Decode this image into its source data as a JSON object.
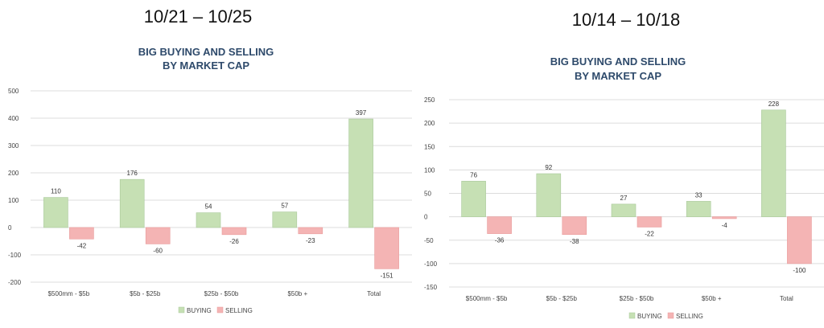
{
  "chart_data": [
    {
      "type": "bar",
      "date_range": "10/21 – 10/25",
      "title_line1": "BIG BUYING AND SELLING",
      "title_line2": "BY MARKET CAP",
      "categories": [
        "$500mm - $5b",
        "$5b - $25b",
        "$25b - $50b",
        "$50b +",
        "Total"
      ],
      "series": [
        {
          "name": "BUYING",
          "values": [
            110,
            176,
            54,
            57,
            397
          ],
          "color": "#c6e0b4"
        },
        {
          "name": "SELLING",
          "values": [
            -42,
            -60,
            -26,
            -23,
            -151
          ],
          "color": "#f4b4b4"
        }
      ],
      "ylim": [
        -200,
        500
      ],
      "yticks": [
        -200,
        -100,
        0,
        100,
        200,
        300,
        400,
        500
      ],
      "ytick_labels": [
        "-200",
        "-100",
        "0",
        "100",
        "200",
        "300",
        "400",
        "500"
      ],
      "grid": true,
      "legend": "bottom"
    },
    {
      "type": "bar",
      "date_range": "10/14 – 10/18",
      "title_line1": "BIG BUYING AND SELLING",
      "title_line2": "BY MARKET CAP",
      "categories": [
        "$500mm - $5b",
        "$5b - $25b",
        "$25b - $50b",
        "$50b +",
        "Total"
      ],
      "series": [
        {
          "name": "BUYING",
          "values": [
            76,
            92,
            27,
            33,
            228
          ],
          "color": "#c6e0b4"
        },
        {
          "name": "SELLING",
          "values": [
            -36,
            -38,
            -22,
            -4,
            -100
          ],
          "color": "#f4b4b4"
        }
      ],
      "ylim": [
        -150,
        250
      ],
      "yticks": [
        -150,
        -100,
        -50,
        0,
        50,
        100,
        150,
        200,
        250
      ],
      "ytick_labels": [
        "-150",
        "-100",
        "-50",
        "0",
        "50",
        "100",
        "150",
        "200",
        "250"
      ],
      "grid": true,
      "legend": "bottom"
    }
  ]
}
